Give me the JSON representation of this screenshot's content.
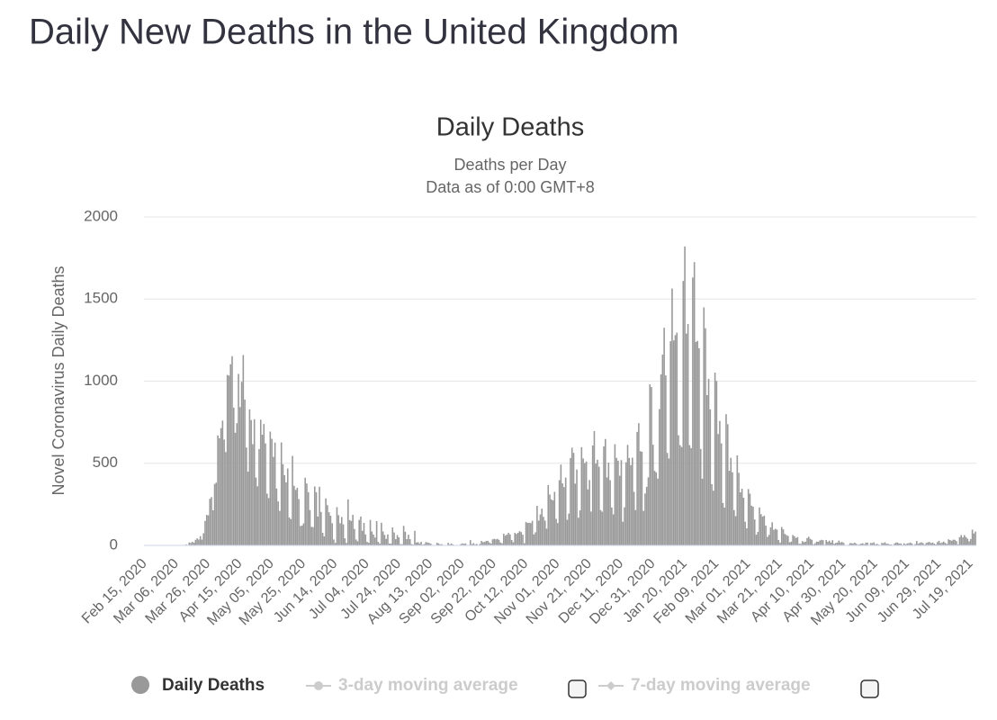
{
  "page_title": "Daily New Deaths in the United Kingdom",
  "chart_data": {
    "type": "bar",
    "title": "Daily Deaths",
    "subtitle": "Deaths per Day",
    "subtitle2": "Data as of 0:00 GMT+8",
    "y_label": "Novel Coronavirus Daily Deaths",
    "ylim": [
      0,
      2000
    ],
    "yticks": [
      0,
      500,
      1000,
      1500,
      2000
    ],
    "grid": true,
    "legend_inactive": [
      "3-day moving average",
      "7-day moving average"
    ],
    "categories": [
      "Feb 15, 2020",
      null,
      null,
      null,
      null,
      null,
      null,
      null,
      null,
      null,
      null,
      null,
      null,
      null,
      null,
      null,
      null,
      null,
      null,
      null,
      "Mar 06, 2020",
      null,
      null,
      null,
      null,
      null,
      null,
      null,
      null,
      null,
      null,
      null,
      null,
      null,
      null,
      null,
      null,
      null,
      null,
      null,
      "Mar 26, 2020",
      null,
      null,
      null,
      null,
      null,
      null,
      null,
      null,
      null,
      null,
      null,
      null,
      null,
      null,
      null,
      null,
      null,
      null,
      null,
      "Apr 15, 2020",
      null,
      null,
      null,
      null,
      null,
      null,
      null,
      null,
      null,
      null,
      null,
      null,
      null,
      null,
      null,
      null,
      null,
      null,
      null,
      "May 05, 2020",
      null,
      null,
      null,
      null,
      null,
      null,
      null,
      null,
      null,
      null,
      null,
      null,
      null,
      null,
      null,
      null,
      null,
      null,
      null,
      "May 25, 2020",
      null,
      null,
      null,
      null,
      null,
      null,
      null,
      null,
      null,
      null,
      null,
      null,
      null,
      null,
      null,
      null,
      null,
      null,
      null,
      "Jun 14, 2020",
      null,
      null,
      null,
      null,
      null,
      null,
      null,
      null,
      null,
      null,
      null,
      null,
      null,
      null,
      null,
      null,
      null,
      null,
      null,
      "Jul 04, 2020",
      null,
      null,
      null,
      null,
      null,
      null,
      null,
      null,
      null,
      null,
      null,
      null,
      null,
      null,
      null,
      null,
      null,
      null,
      null,
      "Jul 24, 2020",
      null,
      null,
      null,
      null,
      null,
      null,
      null,
      null,
      null,
      null,
      null,
      null,
      null,
      null,
      null,
      null,
      null,
      null,
      null,
      "Aug 13, 2020",
      null,
      null,
      null,
      null,
      null,
      null,
      null,
      null,
      null,
      null,
      null,
      null,
      null,
      null,
      null,
      null,
      null,
      null,
      null,
      "Sep 02, 2020",
      null,
      null,
      null,
      null,
      null,
      null,
      null,
      null,
      null,
      null,
      null,
      null,
      null,
      null,
      null,
      null,
      null,
      null,
      null,
      "Sep 22, 2020",
      null,
      null,
      null,
      null,
      null,
      null,
      null,
      null,
      null,
      null,
      null,
      null,
      null,
      null,
      null,
      null,
      null,
      null,
      null,
      "Oct 12, 2020",
      null,
      null,
      null,
      null,
      null,
      null,
      null,
      null,
      null,
      null,
      null,
      null,
      null,
      null,
      null,
      null,
      null,
      null,
      null,
      "Nov 01, 2020",
      null,
      null,
      null,
      null,
      null,
      null,
      null,
      null,
      null,
      null,
      null,
      null,
      null,
      null,
      null,
      null,
      null,
      null,
      null,
      "Nov 21, 2020",
      null,
      null,
      null,
      null,
      null,
      null,
      null,
      null,
      null,
      null,
      null,
      null,
      null,
      null,
      null,
      null,
      null,
      null,
      null,
      "Dec 11, 2020",
      null,
      null,
      null,
      null,
      null,
      null,
      null,
      null,
      null,
      null,
      null,
      null,
      null,
      null,
      null,
      null,
      null,
      null,
      null,
      "Dec 31, 2020",
      null,
      null,
      null,
      null,
      null,
      null,
      null,
      null,
      null,
      null,
      null,
      null,
      null,
      null,
      null,
      null,
      null,
      null,
      null,
      "Jan 20, 2021",
      null,
      null,
      null,
      null,
      null,
      null,
      null,
      null,
      null,
      null,
      null,
      null,
      null,
      null,
      null,
      null,
      null,
      null,
      null,
      "Feb 09, 2021",
      null,
      null,
      null,
      null,
      null,
      null,
      null,
      null,
      null,
      null,
      null,
      null,
      null,
      null,
      null,
      null,
      null,
      null,
      null,
      "Mar 01, 2021",
      null,
      null,
      null,
      null,
      null,
      null,
      null,
      null,
      null,
      null,
      null,
      null,
      null,
      null,
      null,
      null,
      null,
      null,
      null,
      "Mar 21, 2021",
      null,
      null,
      null,
      null,
      null,
      null,
      null,
      null,
      null,
      null,
      null,
      null,
      null,
      null,
      null,
      null,
      null,
      null,
      null,
      "Apr 10, 2021",
      null,
      null,
      null,
      null,
      null,
      null,
      null,
      null,
      null,
      null,
      null,
      null,
      null,
      null,
      null,
      null,
      null,
      null,
      null,
      "Apr 30, 2021",
      null,
      null,
      null,
      null,
      null,
      null,
      null,
      null,
      null,
      null,
      null,
      null,
      null,
      null,
      null,
      null,
      null,
      null,
      null,
      "May 20, 2021",
      null,
      null,
      null,
      null,
      null,
      null,
      null,
      null,
      null,
      null,
      null,
      null,
      null,
      null,
      null,
      null,
      null,
      null,
      null,
      "Jun 09, 2021",
      null,
      null,
      null,
      null,
      null,
      null,
      null,
      null,
      null,
      null,
      null,
      null,
      null,
      null,
      null,
      null,
      null,
      null,
      null,
      "Jun 29, 2021",
      null,
      null,
      null,
      null,
      null,
      null,
      null,
      null,
      null,
      null,
      null,
      null,
      null,
      null,
      null,
      null,
      null,
      null,
      null,
      "Jul 19, 2021",
      null,
      null,
      null
    ],
    "series": [
      {
        "name": "Daily Deaths",
        "color": "#999999",
        "values": [
          0,
          0,
          0,
          0,
          0,
          0,
          0,
          0,
          0,
          0,
          0,
          0,
          0,
          0,
          0,
          0,
          0,
          0,
          0,
          1,
          0,
          1,
          1,
          2,
          3,
          2,
          6,
          1,
          18,
          15,
          22,
          16,
          34,
          43,
          36,
          56,
          35,
          74,
          149,
          186,
          183,
          284,
          294,
          214,
          374,
          382,
          670,
          652,
          714,
          760,
          644,
          568,
          1038,
          1034,
          1103,
          1152,
          839,
          686,
          744,
          1044,
          842,
          996,
          1159,
          888,
          596,
          449,
          828,
          763,
          616,
          768,
          413,
          360,
          586,
          765,
          674,
          739,
          621,
          315,
          288,
          693,
          649,
          539,
          626,
          346,
          268,
          210,
          627,
          494,
          428,
          384,
          468,
          170,
          160,
          545,
          363,
          338,
          351,
          282,
          118,
          121,
          134,
          412,
          377,
          324,
          215,
          113,
          111,
          359,
          324,
          176,
          357,
          204,
          77,
          55,
          286,
          245,
          202,
          181,
          135,
          36,
          15,
          233,
          184,
          135,
          173,
          128,
          43,
          15,
          280,
          154,
          149,
          186,
          100,
          36,
          25,
          155,
          176,
          89,
          137,
          67,
          22,
          16,
          155,
          85,
          66,
          48,
          148,
          21,
          11,
          138,
          85,
          64,
          40,
          67,
          11,
          11,
          110,
          79,
          38,
          63,
          49,
          8,
          7,
          119,
          83,
          38,
          65,
          38,
          8,
          5,
          89,
          18,
          20,
          12,
          22,
          5,
          8,
          20,
          18,
          15,
          11,
          3,
          3,
          2,
          16,
          12,
          6,
          8,
          2,
          2,
          1,
          16,
          6,
          12,
          6,
          2,
          1,
          3,
          2,
          8,
          12,
          10,
          12,
          2,
          3,
          32,
          8,
          14,
          6,
          9,
          3,
          9,
          27,
          20,
          21,
          27,
          27,
          18,
          11,
          37,
          40,
          37,
          40,
          34,
          17,
          13,
          71,
          59,
          66,
          77,
          67,
          33,
          19,
          76,
          70,
          77,
          87,
          81,
          65,
          13,
          143,
          137,
          138,
          136,
          150,
          67,
          80,
          241,
          151,
          189,
          224,
          174,
          151,
          102,
          367,
          310,
          280,
          274,
          326,
          162,
          136,
          397,
          492,
          378,
          355,
          413,
          156,
          194,
          532,
          595,
          563,
          376,
          462,
          168,
          213,
          598,
          529,
          501,
          511,
          341,
          398,
          206,
          608,
          696,
          498,
          521,
          479,
          215,
          205,
          603,
          648,
          414,
          504,
          397,
          231,
          189,
          616,
          533,
          516,
          424,
          519,
          144,
          232,
          506,
          612,
          532,
          489,
          534,
          326,
          215,
          691,
          744,
          574,
          570,
          210,
          316,
          357,
          414,
          981,
          964,
          613,
          454,
          445,
          407,
          830,
          1041,
          1162,
          1325,
          1035,
          563,
          529,
          1243,
          1564,
          1248,
          1280,
          1295,
          671,
          610,
          599,
          1610,
          1820,
          1290,
          1348,
          610,
          592,
          1631,
          1725,
          1239,
          1245,
          1200,
          587,
          406,
          1449,
          1322,
          915,
          1014,
          828,
          373,
          333,
          1052,
          1001,
          678,
          758,
          621,
          258,
          230,
          799,
          738,
          454,
          533,
          445,
          215,
          178,
          548,
          442,
          323,
          345,
          290,
          144,
          104,
          343,
          315,
          242,
          236,
          158,
          65,
          82,
          231,
          190,
          175,
          181,
          121,
          52,
          64,
          110,
          141,
          95,
          101,
          96,
          33,
          17,
          112,
          98,
          70,
          63,
          58,
          19,
          23,
          63,
          56,
          45,
          51,
          10,
          10,
          26,
          20,
          23,
          45,
          53,
          40,
          34,
          7,
          13,
          23,
          22,
          30,
          34,
          32,
          4,
          33,
          22,
          29,
          18,
          32,
          10,
          15,
          17,
          29,
          18,
          21,
          15,
          1,
          2,
          4,
          14,
          13,
          12,
          17,
          10,
          4,
          7,
          11,
          13,
          7,
          17,
          17,
          2,
          15,
          14,
          19,
          7,
          10,
          5,
          1,
          15,
          14,
          19,
          10,
          10,
          6,
          6,
          1,
          12,
          18,
          17,
          11,
          12,
          4,
          13,
          7,
          12,
          14,
          17,
          12,
          3,
          8,
          27,
          10,
          16,
          19,
          14,
          5,
          15,
          19,
          21,
          14,
          18,
          11,
          6,
          20,
          28,
          14,
          18,
          23,
          15,
          9,
          37,
          33,
          28,
          35,
          34,
          26,
          6,
          50,
          63,
          49,
          63,
          51,
          41,
          25,
          39,
          96,
          73,
          84
        ]
      }
    ]
  }
}
